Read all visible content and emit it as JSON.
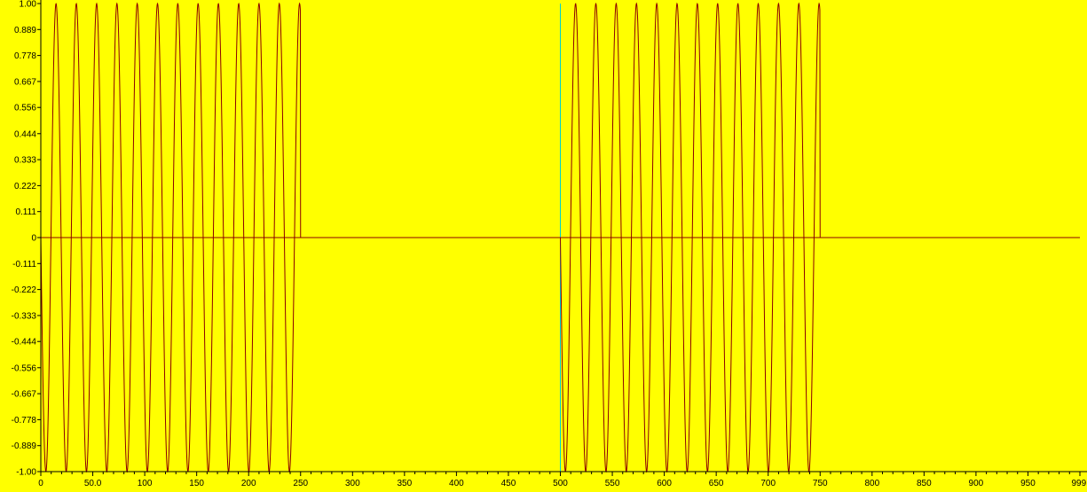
{
  "chart_data": {
    "type": "line",
    "title": "",
    "xlabel": "",
    "ylabel": "",
    "xlim": [
      0,
      1000
    ],
    "ylim": [
      -1.0,
      1.0
    ],
    "grid": false,
    "legend": "none",
    "x_ticks": [
      0,
      50,
      100,
      150,
      200,
      250,
      300,
      350,
      400,
      450,
      500,
      550,
      600,
      650,
      700,
      750,
      800,
      850,
      900,
      950,
      999
    ],
    "x_tick_labels": [
      "0",
      "50.0",
      "100",
      "150",
      "200",
      "250",
      "300",
      "350",
      "400",
      "450",
      "500",
      "550",
      "600",
      "650",
      "700",
      "750",
      "800",
      "850",
      "900",
      "950",
      "999"
    ],
    "y_ticks": [
      1.0,
      0.889,
      0.778,
      0.667,
      0.556,
      0.444,
      0.333,
      0.222,
      0.111,
      0,
      -0.111,
      -0.222,
      -0.333,
      -0.444,
      -0.556,
      -0.667,
      -0.778,
      -0.889,
      -1.0
    ],
    "y_tick_labels": [
      "1.00",
      "0.889",
      "0.778",
      "0.667",
      "0.556",
      "0.444",
      "0.333",
      "0.222",
      "0.111",
      "0",
      "-0.111",
      "-0.222",
      "-0.333",
      "-0.444",
      "-0.556",
      "-0.667",
      "-0.778",
      "-0.889",
      "-1.00"
    ],
    "series": [
      {
        "bursts": [
          {
            "x_start": 0,
            "x_end": 250,
            "amplitude": 1.0,
            "cycles": 12.8
          },
          {
            "x_start": 500,
            "x_end": 750,
            "amplitude": 1.0,
            "cycles": 12.8
          }
        ],
        "baseline": 0,
        "color": "#8b0000"
      }
    ],
    "colors": {
      "background": "#ffff00",
      "axis": "#000000",
      "zero_line": "#8b0000",
      "marker_line": "#00d0d0"
    },
    "vertical_marker_x": 500
  }
}
